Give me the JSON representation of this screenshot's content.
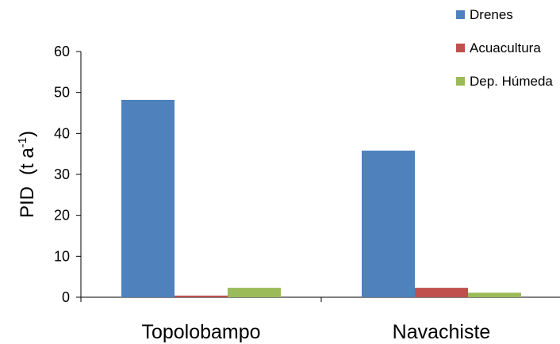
{
  "chart_data": {
    "type": "bar",
    "categories": [
      "Topolobampo",
      "Navachiste"
    ],
    "series": [
      {
        "name": "Drenes",
        "values": [
          48.2,
          35.8
        ],
        "color": "#4f81bd"
      },
      {
        "name": "Acuacultura",
        "values": [
          0.4,
          2.3
        ],
        "color": "#c0504d"
      },
      {
        "name": "Dep. Húmeda",
        "values": [
          2.3,
          1.1
        ],
        "color": "#9bbb59"
      }
    ],
    "ylabel": "PID",
    "ylabel_unit": "(t a-1)",
    "ylim": [
      0,
      60
    ],
    "yticks": [
      0,
      10,
      20,
      30,
      40,
      50,
      60
    ],
    "grid": false,
    "legend_position": "top-right"
  }
}
